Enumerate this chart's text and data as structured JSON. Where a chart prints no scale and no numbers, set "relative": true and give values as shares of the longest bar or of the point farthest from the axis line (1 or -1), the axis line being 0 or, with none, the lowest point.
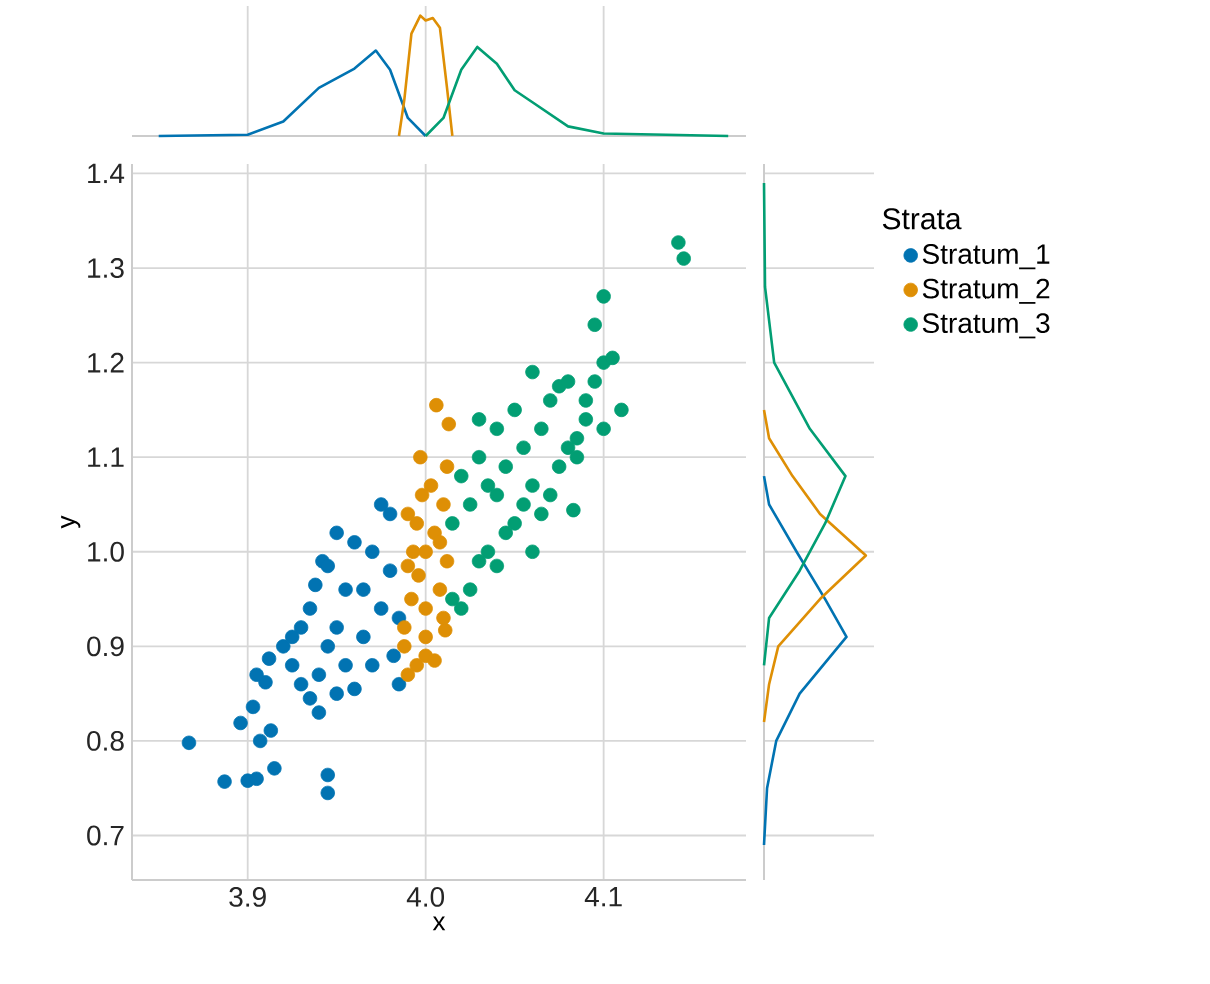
{
  "chart_data": [
    {
      "type": "line",
      "relative": true,
      "xlim": [
        3.835,
        4.18
      ],
      "xticks": [
        3.9,
        4.0,
        4.1
      ],
      "grid": "x",
      "tick_labels": false,
      "series": [
        {
          "color": "#0173b2",
          "x": [
            3.85,
            3.9,
            3.92,
            3.94,
            3.96,
            3.972,
            3.98,
            3.99,
            4.0
          ],
          "values": [
            0,
            0.01,
            0.12,
            0.4,
            0.56,
            0.71,
            0.55,
            0.15,
            0
          ]
        },
        {
          "color": "#de8f05",
          "x": [
            3.985,
            3.988,
            3.992,
            3.997,
            4.0,
            4.004,
            4.008,
            4.012,
            4.015
          ],
          "values": [
            0,
            0.3,
            0.85,
            1.0,
            0.96,
            0.98,
            0.9,
            0.4,
            0
          ]
        },
        {
          "color": "#029e73",
          "x": [
            4.0,
            4.01,
            4.02,
            4.029,
            4.04,
            4.05,
            4.06,
            4.08,
            4.1,
            4.17
          ],
          "values": [
            0,
            0.15,
            0.55,
            0.74,
            0.6,
            0.38,
            0.28,
            0.08,
            0.02,
            0
          ]
        }
      ]
    },
    {
      "type": "scatter",
      "xlabel": "x",
      "ylabel": "y",
      "xlim": [
        3.835,
        4.18
      ],
      "ylim": [
        0.653,
        1.41
      ],
      "xticks": [
        3.9,
        {
          "value": 4.0,
          "label": "4.0"
        },
        4.1
      ],
      "yticks": [
        0.7,
        0.8,
        0.9,
        {
          "value": 1.0,
          "label": "1.0"
        },
        1.1,
        1.2,
        1.3,
        1.4
      ],
      "grid": true,
      "legend": "right",
      "legend_title": "Strata",
      "marker": "circle",
      "series": [
        {
          "name": "Stratum_1",
          "color": "#0173b2",
          "x": [
            3.867,
            3.887,
            3.9,
            3.905,
            3.896,
            3.903,
            3.907,
            3.913,
            3.915,
            3.945,
            3.945,
            3.91,
            3.905,
            3.912,
            3.92,
            3.925,
            3.93,
            3.935,
            3.94,
            3.93,
            3.935,
            3.938,
            3.942,
            3.945,
            3.95,
            3.955,
            3.95,
            3.955,
            3.96,
            3.965,
            3.965,
            3.97,
            3.975,
            3.98,
            3.975,
            3.982,
            3.985,
            3.98,
            3.96,
            3.945,
            3.925,
            3.94,
            3.95,
            3.97,
            3.985
          ],
          "values": [
            0.798,
            0.757,
            0.758,
            0.76,
            0.819,
            0.836,
            0.8,
            0.811,
            0.771,
            0.764,
            0.745,
            0.862,
            0.87,
            0.887,
            0.9,
            0.88,
            0.86,
            0.845,
            0.83,
            0.92,
            0.94,
            0.965,
            0.99,
            0.985,
            1.02,
            0.96,
            0.92,
            0.88,
            0.855,
            0.91,
            0.96,
            1.0,
            1.05,
            1.04,
            0.94,
            0.89,
            0.86,
            0.98,
            1.01,
            0.9,
            0.91,
            0.87,
            0.85,
            0.88,
            0.93
          ]
        },
        {
          "name": "Stratum_2",
          "color": "#de8f05",
          "x": [
            3.99,
            3.995,
            4.0,
            4.005,
            4.011,
            3.988,
            3.992,
            3.996,
            4.0,
            4.005,
            4.01,
            4.012,
            3.997,
            4.006,
            3.993,
            3.99,
            3.99,
            4.0,
            4.008,
            4.012,
            4.003,
            3.995,
            4.0,
            4.01,
            3.988,
            4.008,
            4.013,
            3.998
          ],
          "values": [
            0.87,
            0.88,
            0.89,
            0.885,
            0.917,
            0.92,
            0.95,
            0.975,
            1.0,
            1.02,
            1.05,
            1.09,
            1.1,
            1.155,
            1.0,
            1.04,
            0.985,
            0.94,
            0.96,
            0.99,
            1.07,
            1.03,
            0.91,
            0.93,
            0.9,
            1.01,
            1.135,
            1.06
          ]
        },
        {
          "name": "Stratum_3",
          "color": "#029e73",
          "x": [
            4.015,
            4.02,
            4.025,
            4.03,
            4.035,
            4.04,
            4.045,
            4.05,
            4.055,
            4.06,
            4.065,
            4.07,
            4.075,
            4.08,
            4.085,
            4.09,
            4.095,
            4.1,
            4.105,
            4.11,
            4.1,
            4.095,
            4.1,
            4.142,
            4.145,
            4.06,
            4.075,
            4.05,
            4.04,
            4.03,
            4.02,
            4.015,
            4.025,
            4.035,
            4.045,
            4.055,
            4.065,
            4.07,
            4.08,
            4.09,
            4.085,
            4.083,
            4.03,
            4.04,
            4.06
          ],
          "values": [
            0.95,
            0.94,
            0.96,
            0.99,
            1.0,
            0.985,
            1.02,
            1.03,
            1.05,
            1.07,
            1.04,
            1.06,
            1.09,
            1.11,
            1.12,
            1.16,
            1.18,
            1.2,
            1.205,
            1.15,
            1.13,
            1.24,
            1.27,
            1.327,
            1.31,
            1.19,
            1.175,
            1.15,
            1.13,
            1.1,
            1.08,
            1.03,
            1.05,
            1.07,
            1.09,
            1.11,
            1.13,
            1.16,
            1.18,
            1.14,
            1.1,
            1.044,
            1.14,
            1.06,
            1.0
          ]
        }
      ]
    },
    {
      "type": "line",
      "relative": true,
      "orientation": "horizontal",
      "ylim": [
        0.653,
        1.41
      ],
      "yticks": [
        0.7,
        0.8,
        0.9,
        1.0,
        1.1,
        1.2,
        1.3,
        1.4
      ],
      "grid": "y",
      "tick_labels": false,
      "series": [
        {
          "color": "#0173b2",
          "x": [
            0.69,
            0.75,
            0.8,
            0.85,
            0.91,
            0.95,
            1.0,
            1.05,
            1.08
          ],
          "values": [
            0,
            0.03,
            0.12,
            0.35,
            0.81,
            0.6,
            0.32,
            0.05,
            0
          ]
        },
        {
          "color": "#de8f05",
          "x": [
            0.82,
            0.86,
            0.9,
            0.95,
            0.996,
            1.04,
            1.08,
            1.12,
            1.15
          ],
          "values": [
            0,
            0.05,
            0.14,
            0.55,
            1.0,
            0.55,
            0.28,
            0.05,
            0
          ]
        },
        {
          "color": "#029e73",
          "x": [
            0.88,
            0.93,
            0.98,
            1.03,
            1.08,
            1.13,
            1.2,
            1.28,
            1.39
          ],
          "values": [
            0,
            0.05,
            0.35,
            0.6,
            0.8,
            0.45,
            0.1,
            0.01,
            0
          ]
        }
      ]
    }
  ]
}
